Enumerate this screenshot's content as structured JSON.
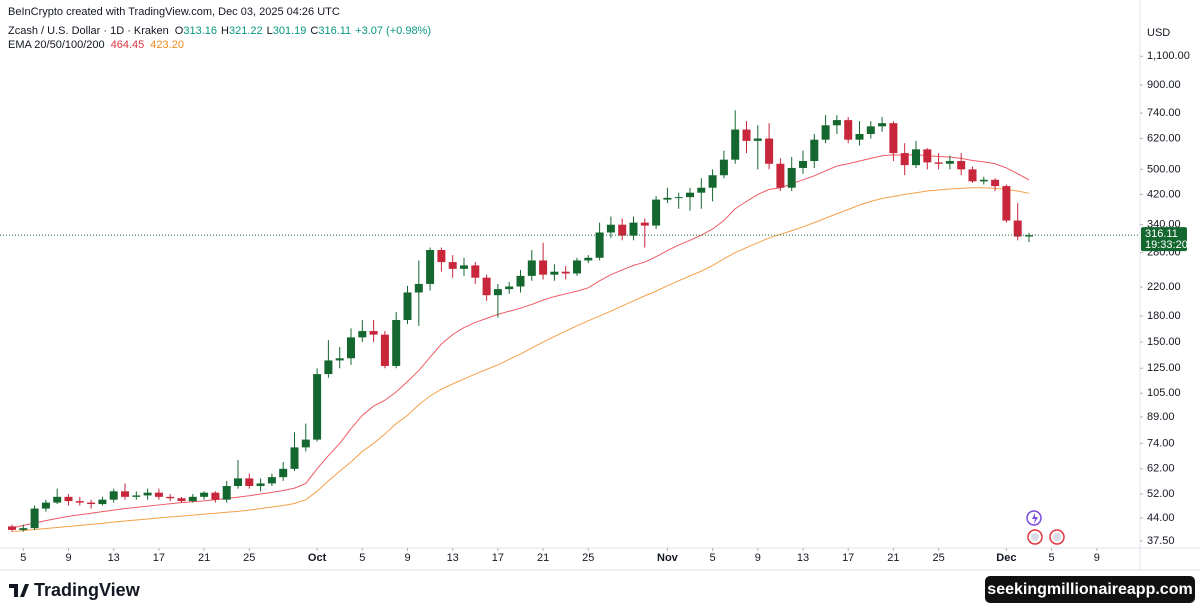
{
  "chart_data": {
    "type": "candlestick",
    "attribution": "BeInCrypto created with TradingView.com, Dec 03, 2025 04:26 UTC",
    "symbol": "Zcash / U.S. Dollar · 1D · Kraken",
    "ohlc": [
      {
        "label": "O",
        "value": 313.16
      },
      {
        "label": "H",
        "value": 321.22
      },
      {
        "label": "L",
        "value": 301.19
      },
      {
        "label": "C",
        "value": 316.11
      }
    ],
    "change": "+3.07 (+0.98%)",
    "currency": "USD",
    "last_price": 316.11,
    "countdown": "19:33:20",
    "brand": "TradingView",
    "watermark": "seekingmillionaireapp.com",
    "log_scale": true,
    "grid": false,
    "up_color": "#14672f",
    "down_color": "#c7263b",
    "ylim": [
      35.7,
      1190
    ],
    "yticks": [
      {
        "value": 37.5,
        "label": "37.50"
      },
      {
        "value": 44,
        "label": "44.00"
      },
      {
        "value": 52,
        "label": "52.00"
      },
      {
        "value": 62,
        "label": "62.00"
      },
      {
        "value": 74,
        "label": "74.00"
      },
      {
        "value": 89,
        "label": "89.00"
      },
      {
        "value": 105,
        "label": "105.00"
      },
      {
        "value": 125,
        "label": "125.00"
      },
      {
        "value": 150,
        "label": "150.00"
      },
      {
        "value": 180,
        "label": "180.00"
      },
      {
        "value": 220,
        "label": "220.00"
      },
      {
        "value": 280,
        "label": "280.00"
      },
      {
        "value": 340,
        "label": "340.00"
      },
      {
        "value": 420,
        "label": "420.00"
      },
      {
        "value": 500,
        "label": "500.00"
      },
      {
        "value": 620,
        "label": "620.00"
      },
      {
        "value": 740,
        "label": "740.00"
      },
      {
        "value": 900,
        "label": "900.00"
      },
      {
        "value": 1100,
        "label": "1,100.00"
      }
    ],
    "xticks": [
      {
        "value": "2025-09-05",
        "label": "5"
      },
      {
        "value": "2025-09-09",
        "label": "9"
      },
      {
        "value": "2025-09-13",
        "label": "13"
      },
      {
        "value": "2025-09-17",
        "label": "17"
      },
      {
        "value": "2025-09-21",
        "label": "21"
      },
      {
        "value": "2025-09-25",
        "label": "25"
      },
      {
        "value": "2025-10-01",
        "label": "Oct"
      },
      {
        "value": "2025-10-05",
        "label": "5"
      },
      {
        "value": "2025-10-09",
        "label": "9"
      },
      {
        "value": "2025-10-13",
        "label": "13"
      },
      {
        "value": "2025-10-17",
        "label": "17"
      },
      {
        "value": "2025-10-21",
        "label": "21"
      },
      {
        "value": "2025-10-25",
        "label": "25"
      },
      {
        "value": "2025-11-01",
        "label": "Nov"
      },
      {
        "value": "2025-11-05",
        "label": "5"
      },
      {
        "value": "2025-11-09",
        "label": "9"
      },
      {
        "value": "2025-11-13",
        "label": "13"
      },
      {
        "value": "2025-11-17",
        "label": "17"
      },
      {
        "value": "2025-11-21",
        "label": "21"
      },
      {
        "value": "2025-11-25",
        "label": "25"
      },
      {
        "value": "2025-12-01",
        "label": "Dec"
      },
      {
        "value": "2025-12-05",
        "label": "5"
      },
      {
        "value": "2025-12-09",
        "label": "9"
      }
    ],
    "categories": [
      "2025-09-04",
      "2025-09-05",
      "2025-09-06",
      "2025-09-07",
      "2025-09-08",
      "2025-09-09",
      "2025-09-10",
      "2025-09-11",
      "2025-09-12",
      "2025-09-13",
      "2025-09-14",
      "2025-09-15",
      "2025-09-16",
      "2025-09-17",
      "2025-09-18",
      "2025-09-19",
      "2025-09-20",
      "2025-09-21",
      "2025-09-22",
      "2025-09-23",
      "2025-09-24",
      "2025-09-25",
      "2025-09-26",
      "2025-09-27",
      "2025-09-28",
      "2025-09-29",
      "2025-09-30",
      "2025-10-01",
      "2025-10-02",
      "2025-10-03",
      "2025-10-04",
      "2025-10-05",
      "2025-10-06",
      "2025-10-07",
      "2025-10-08",
      "2025-10-09",
      "2025-10-10",
      "2025-10-11",
      "2025-10-12",
      "2025-10-13",
      "2025-10-14",
      "2025-10-15",
      "2025-10-16",
      "2025-10-17",
      "2025-10-18",
      "2025-10-19",
      "2025-10-20",
      "2025-10-21",
      "2025-10-22",
      "2025-10-23",
      "2025-10-24",
      "2025-10-25",
      "2025-10-26",
      "2025-10-27",
      "2025-10-28",
      "2025-10-29",
      "2025-10-30",
      "2025-10-31",
      "2025-11-01",
      "2025-11-02",
      "2025-11-03",
      "2025-11-04",
      "2025-11-05",
      "2025-11-06",
      "2025-11-07",
      "2025-11-08",
      "2025-11-09",
      "2025-11-10",
      "2025-11-11",
      "2025-11-12",
      "2025-11-13",
      "2025-11-14",
      "2025-11-15",
      "2025-11-16",
      "2025-11-17",
      "2025-11-18",
      "2025-11-19",
      "2025-11-20",
      "2025-11-21",
      "2025-11-22",
      "2025-11-23",
      "2025-11-24",
      "2025-11-25",
      "2025-11-26",
      "2025-11-27",
      "2025-11-28",
      "2025-11-29",
      "2025-11-30",
      "2025-12-01",
      "2025-12-02",
      "2025-12-03"
    ],
    "open": [
      41.5,
      40.5,
      41,
      47,
      49,
      51,
      49.5,
      49,
      48.5,
      50,
      53,
      51,
      51.5,
      52.5,
      51,
      50.5,
      49.5,
      51,
      52.5,
      50,
      55,
      58,
      55,
      56,
      58.5,
      62,
      72,
      76,
      120,
      132,
      134,
      155,
      162,
      158,
      127,
      175,
      212,
      225,
      285,
      262,
      250,
      256,
      235,
      208,
      217,
      221,
      238,
      265,
      240,
      245,
      242,
      265,
      270,
      322,
      340,
      315,
      345,
      338,
      405,
      410,
      412,
      425,
      440,
      480,
      535,
      660,
      610,
      620,
      520,
      440,
      505,
      530,
      615,
      680,
      705,
      615,
      640,
      675,
      690,
      560,
      515,
      575,
      525,
      520,
      530,
      500,
      460,
      465,
      445,
      350,
      313.16
    ],
    "high": [
      42,
      42,
      48,
      50,
      54,
      52,
      51,
      50,
      51,
      54,
      56,
      53,
      54,
      54,
      52,
      51,
      52,
      53,
      53,
      57,
      66,
      60,
      58,
      60,
      65,
      80,
      85,
      125,
      152,
      145,
      165,
      175,
      175,
      162,
      185,
      222,
      265,
      290,
      290,
      275,
      270,
      262,
      240,
      225,
      228,
      248,
      285,
      300,
      258,
      255,
      270,
      275,
      345,
      360,
      355,
      360,
      355,
      415,
      440,
      425,
      440,
      470,
      500,
      570,
      755,
      700,
      680,
      690,
      540,
      545,
      570,
      640,
      730,
      730,
      720,
      700,
      700,
      720,
      700,
      600,
      610,
      580,
      560,
      550,
      560,
      510,
      475,
      470,
      450,
      395,
      321.22
    ],
    "low": [
      40,
      40,
      40.5,
      46,
      48.5,
      48,
      48,
      47,
      48,
      49,
      50,
      50,
      50,
      50,
      49.5,
      49,
      49,
      50,
      49,
      49,
      54,
      54,
      53,
      55,
      57,
      61,
      70,
      75,
      117,
      125,
      128,
      150,
      150,
      125,
      125,
      170,
      168,
      215,
      245,
      235,
      238,
      225,
      200,
      178,
      210,
      212,
      230,
      232,
      230,
      232,
      238,
      260,
      265,
      310,
      305,
      305,
      290,
      330,
      395,
      380,
      375,
      380,
      400,
      470,
      520,
      560,
      500,
      500,
      430,
      430,
      485,
      505,
      600,
      640,
      600,
      590,
      620,
      650,
      530,
      480,
      505,
      500,
      500,
      500,
      480,
      455,
      450,
      430,
      345,
      305,
      301.19
    ],
    "close": [
      40.5,
      41,
      47,
      49,
      51,
      49.5,
      49,
      48.5,
      50,
      53,
      51,
      51.5,
      52.5,
      51,
      50.5,
      49.5,
      51,
      52.5,
      50,
      55,
      58,
      55,
      56,
      58.5,
      62,
      72,
      76,
      120,
      132,
      134,
      155,
      162,
      158,
      127,
      175,
      212,
      225,
      285,
      262,
      250,
      256,
      235,
      208,
      217,
      221,
      238,
      265,
      240,
      245,
      242,
      265,
      270,
      322,
      340,
      315,
      345,
      338,
      405,
      410,
      412,
      425,
      440,
      480,
      535,
      660,
      610,
      620,
      520,
      440,
      505,
      530,
      615,
      680,
      705,
      615,
      640,
      675,
      690,
      560,
      515,
      575,
      525,
      520,
      530,
      500,
      460,
      465,
      445,
      350,
      313.04,
      316.11
    ],
    "indicator": {
      "label": "EMA 20/50/100/200",
      "lines": [
        {
          "color": "#ef5a64",
          "last": 464.45,
          "values": [
            41,
            41.8,
            42.5,
            43.2,
            43.9,
            44.5,
            45,
            45.5,
            46,
            46.5,
            47,
            47.4,
            47.8,
            48.2,
            48.6,
            49,
            49.3,
            49.6,
            50,
            50.4,
            50.9,
            51.4,
            52,
            52.6,
            53.3,
            54.2,
            56,
            62,
            68,
            74,
            82,
            90,
            96,
            100,
            106,
            114,
            123,
            135,
            148,
            158,
            166,
            172,
            177,
            182,
            186,
            190,
            195,
            201,
            206,
            210,
            214,
            219,
            230,
            240,
            248,
            256,
            262,
            272,
            284,
            295,
            305,
            316,
            330,
            350,
            380,
            400,
            420,
            435,
            440,
            452,
            465,
            478,
            495,
            512,
            520,
            530,
            540,
            550,
            553,
            552,
            554,
            550,
            547,
            545,
            540,
            532,
            527,
            520,
            505,
            485,
            464.45
          ]
        },
        {
          "color": "#f5a04a",
          "last": {
            "value": 423.2,
            "label": "423.20"
          },
          "values": [
            40,
            40.3,
            40.6,
            40.9,
            41.2,
            41.5,
            41.8,
            42.1,
            42.4,
            42.8,
            43.1,
            43.4,
            43.7,
            44,
            44.3,
            44.6,
            44.9,
            45.2,
            45.5,
            45.8,
            46.1,
            46.5,
            47,
            47.5,
            48,
            48.7,
            50,
            53,
            57,
            61,
            65,
            70,
            74,
            79,
            85,
            90,
            97,
            103,
            108,
            112,
            116,
            120,
            124,
            128,
            133,
            138,
            144,
            150,
            156,
            162,
            168,
            174,
            180,
            186,
            193,
            200,
            207,
            214,
            222,
            230,
            238,
            246,
            256,
            268,
            280,
            290,
            300,
            310,
            318,
            326,
            335,
            345,
            356,
            367,
            378,
            390,
            400,
            408,
            414,
            420,
            425,
            430,
            433,
            436,
            438,
            440,
            440,
            438,
            435,
            430,
            423.2
          ]
        }
      ]
    }
  }
}
